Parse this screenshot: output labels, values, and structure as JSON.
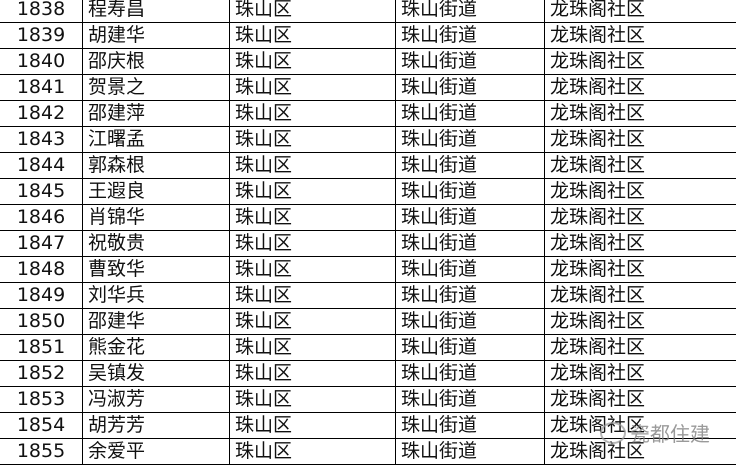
{
  "rows": [
    [
      "1838",
      "程寿昌",
      "珠山区",
      "珠山街道",
      "龙珠阁社区"
    ],
    [
      "1839",
      "胡建华",
      "珠山区",
      "珠山街道",
      "龙珠阁社区"
    ],
    [
      "1840",
      "邵庆根",
      "珠山区",
      "珠山街道",
      "龙珠阁社区"
    ],
    [
      "1841",
      "贺景之",
      "珠山区",
      "珠山街道",
      "龙珠阁社区"
    ],
    [
      "1842",
      "邵建萍",
      "珠山区",
      "珠山街道",
      "龙珠阁社区"
    ],
    [
      "1843",
      "江曙孟",
      "珠山区",
      "珠山街道",
      "龙珠阁社区"
    ],
    [
      "1844",
      "郭森根",
      "珠山区",
      "珠山街道",
      "龙珠阁社区"
    ],
    [
      "1845",
      "王遐良",
      "珠山区",
      "珠山街道",
      "龙珠阁社区"
    ],
    [
      "1846",
      "肖锦华",
      "珠山区",
      "珠山街道",
      "龙珠阁社区"
    ],
    [
      "1847",
      "祝敬贵",
      "珠山区",
      "珠山街道",
      "龙珠阁社区"
    ],
    [
      "1848",
      "曹致华",
      "珠山区",
      "珠山街道",
      "龙珠阁社区"
    ],
    [
      "1849",
      "刘华兵",
      "珠山区",
      "珠山街道",
      "龙珠阁社区"
    ],
    [
      "1850",
      "邵建华",
      "珠山区",
      "珠山街道",
      "龙珠阁社区"
    ],
    [
      "1851",
      "熊金花",
      "珠山区",
      "珠山街道",
      "龙珠阁社区"
    ],
    [
      "1852",
      "吴镇发",
      "珠山区",
      "珠山街道",
      "龙珠阁社区"
    ],
    [
      "1853",
      "冯淑芳",
      "珠山区",
      "珠山街道",
      "龙珠阁社区"
    ],
    [
      "1854",
      "胡芳芳",
      "珠山区",
      "珠山街道",
      "龙珠阁社区"
    ],
    [
      "1855",
      "余爱平",
      "珠山区",
      "珠山街道",
      "龙珠阁社区"
    ]
  ],
  "watermark": {
    "text": "瓷都住建",
    "icon": "wechat-icon"
  }
}
